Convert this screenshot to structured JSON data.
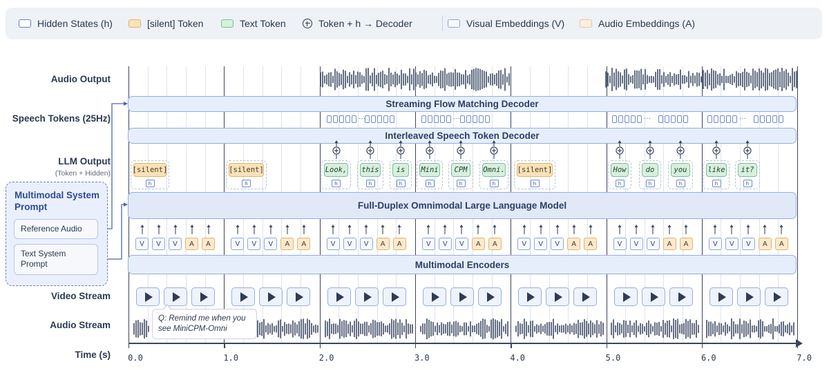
{
  "legend": {
    "items": [
      {
        "label": "Hidden States (h)",
        "swatch": "hidden"
      },
      {
        "label": "[silent] Token",
        "swatch": "silent"
      },
      {
        "label": "Text Token",
        "swatch": "text"
      },
      {
        "label": "Token + h → Decoder",
        "swatch": "plus"
      },
      {
        "label": "Visual Embeddings (V)",
        "swatch": "vis"
      },
      {
        "label": "Audio Embeddings (A)",
        "swatch": "aud"
      }
    ]
  },
  "rows": {
    "audio_output": "Audio Output",
    "speech_tokens": "Speech Tokens (25Hz)",
    "llm_output": "LLM Output",
    "llm_output_sub": "(Token + Hidden)",
    "video_stream": "Video Stream",
    "audio_stream": "Audio Stream",
    "time": "Time (s)"
  },
  "bars": {
    "flow_decoder": "Streaming Flow Matching Decoder",
    "speech_token_decoder": "Interleaved Speech Token Decoder",
    "llm": "Full-Duplex Omnimodal Large Language Model",
    "encoders": "Multimodal Encoders"
  },
  "system_prompt": {
    "title": "Multimodal System Prompt",
    "reference_audio": "Reference Audio",
    "text_system_prompt": "Text System Prompt"
  },
  "query": "Q: Remind me when you see MiniCPM-Omni",
  "hidden_label": "h",
  "encoder_labels": {
    "v": "V",
    "a": "A"
  },
  "tokens": [
    {
      "text": "[silent]",
      "kind": "silent",
      "decoder": false
    },
    {
      "text": "[silent]",
      "kind": "silent",
      "decoder": false
    },
    {
      "text": "Look,",
      "kind": "text",
      "decoder": true
    },
    {
      "text": "this",
      "kind": "text",
      "decoder": true
    },
    {
      "text": "is",
      "kind": "text",
      "decoder": true
    },
    {
      "text": "Mini",
      "kind": "text",
      "decoder": true
    },
    {
      "text": "CPM",
      "kind": "text",
      "decoder": true
    },
    {
      "text": "Omni.",
      "kind": "text",
      "decoder": true
    },
    {
      "text": "[silent]",
      "kind": "silent",
      "decoder": false
    },
    {
      "text": "How",
      "kind": "text",
      "decoder": true
    },
    {
      "text": "do",
      "kind": "text",
      "decoder": true
    },
    {
      "text": "you",
      "kind": "text",
      "decoder": true
    },
    {
      "text": "like",
      "kind": "text",
      "decoder": true
    },
    {
      "text": "it?",
      "kind": "text",
      "decoder": true
    }
  ],
  "time_ticks": [
    "0.0",
    "1.0",
    "2.0",
    "3.0",
    "4.0",
    "5.0",
    "6.0",
    "7.0"
  ],
  "colors": {
    "bar_fill": "#e7eefb",
    "bar_border": "#93aee0",
    "silent_fill": "#f8e2ba",
    "text_fill": "#d7f0de",
    "legend_bg": "#eef1f6",
    "system_prompt_border": "#5f80c8"
  }
}
